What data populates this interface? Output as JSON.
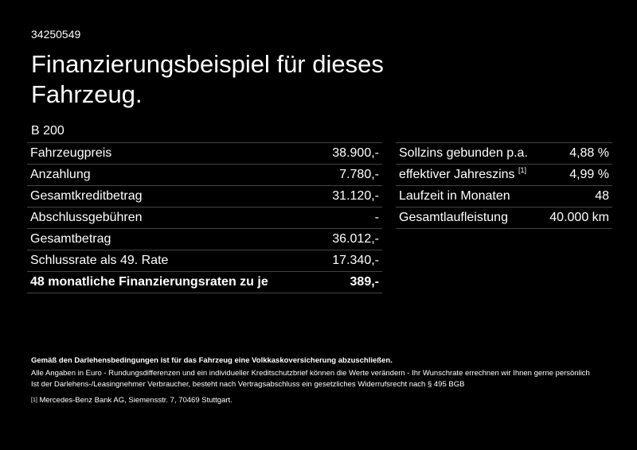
{
  "vehicle_id": "34250549",
  "title": "Finanzierungsbeispiel für dieses Fahrzeug.",
  "model": "B 200",
  "left_rows": [
    {
      "label": "Fahrzeugpreis",
      "value": "38.900,-"
    },
    {
      "label": "Anzahlung",
      "value": "7.780,-"
    },
    {
      "label": "Gesamtkreditbetrag",
      "value": "31.120,-"
    },
    {
      "label": "Abschlussgebühren",
      "value": "-"
    },
    {
      "label": "Gesamtbetrag",
      "value": "36.012,-"
    },
    {
      "label": "Schlussrate als 49. Rate",
      "value": "17.340,-"
    },
    {
      "label": "48 monatliche Finanzierungsraten zu je",
      "value": "389,-"
    }
  ],
  "right_rows": [
    {
      "label": "Sollzins gebunden p.a.",
      "sup": "",
      "value": "4,88 %"
    },
    {
      "label": "effektiver Jahreszins",
      "sup": "[1]",
      "value": "4,99 %"
    },
    {
      "label": "Laufzeit in Monaten",
      "sup": "",
      "value": "48"
    },
    {
      "label": "Gesamtlaufleistung",
      "sup": "",
      "value": "40.000 km"
    }
  ],
  "notes": {
    "insurance": "Gemäß den Darlehensbedingungen ist für das Fahrzeug eine Volkkaskoversicherung abzuschließen.",
    "line1": "Alle Angaben in Euro - Rundungsdifferenzen und ein individueller Kreditschutzbrief können die Werte verändern - Ihr Wunschrate errechnen wir Ihnen gerne persönlich",
    "line2": "Ist der Darlehens-/Leasingnehmer Verbraucher, besteht nach Vertragsabschluss ein gesetzliches Widerrufsrecht nach § 495 BGB",
    "footnote_mark": "[1]",
    "footnote_text": "Mercedes-Benz Bank AG, Siemensstr. 7, 70469 Stuttgart."
  }
}
